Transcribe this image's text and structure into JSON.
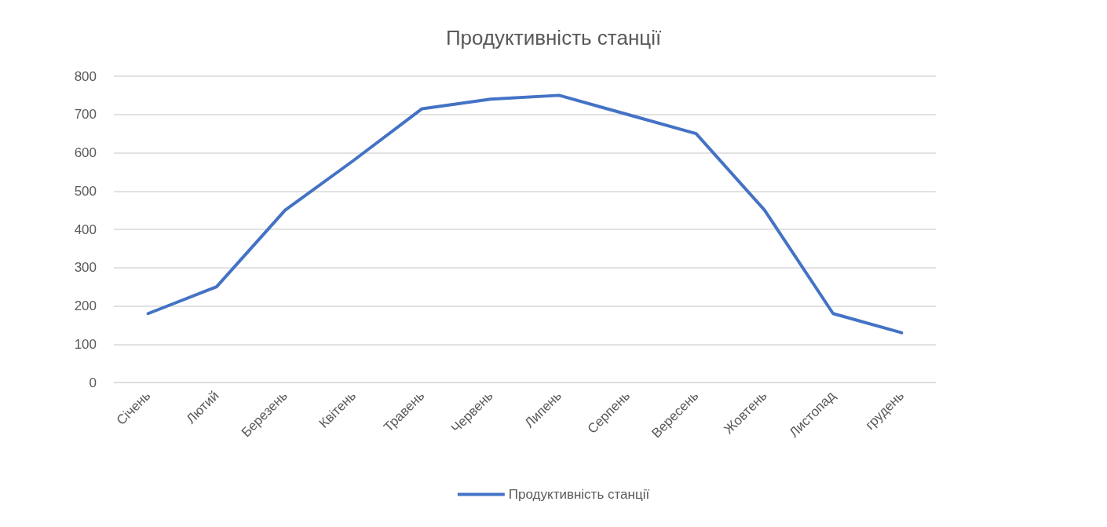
{
  "chart_data": {
    "type": "line",
    "title": "Продуктивність станції",
    "categories": [
      "Січень",
      "Лютий",
      "Березень",
      "Квітень",
      "Травень",
      "Червень",
      "Липень",
      "Серпень",
      "Вересень",
      "Жовтень",
      "Листопад",
      "грудень"
    ],
    "series": [
      {
        "name": "Продуктивність станції",
        "color": "#4472c4",
        "values": [
          180,
          250,
          450,
          580,
          715,
          740,
          750,
          700,
          650,
          450,
          180,
          130
        ]
      }
    ],
    "ylim": [
      0,
      800
    ],
    "yticks": [
      0,
      100,
      200,
      300,
      400,
      500,
      600,
      700,
      800
    ],
    "grid": "y",
    "legend": "bottom",
    "marker": "none",
    "line_style": "solid"
  }
}
